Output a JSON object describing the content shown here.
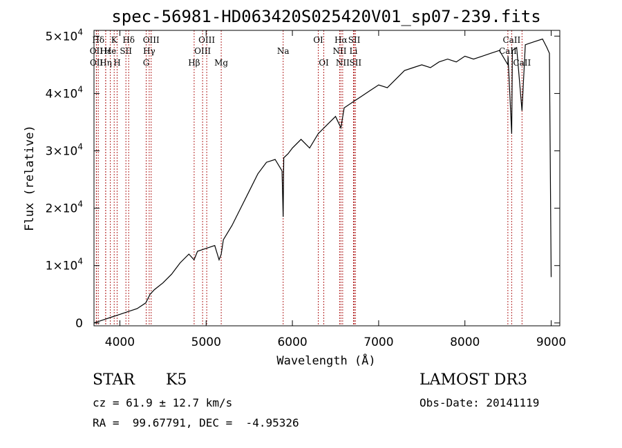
{
  "chart_data": {
    "type": "line",
    "title": "spec-56981-HD063420S025420V01_sp07-239.fits",
    "xlabel": "Wavelength (Å)",
    "ylabel": "Flux (relative)",
    "xlim": [
      3700,
      9100
    ],
    "ylim": [
      -500,
      51000
    ],
    "xticks": [
      4000,
      5000,
      6000,
      7000,
      8000,
      9000
    ],
    "xtick_labels": [
      "4000",
      "5000",
      "6000",
      "7000",
      "8000",
      "9000"
    ],
    "yticks": [
      0,
      10000,
      20000,
      30000,
      40000,
      50000
    ],
    "ytick_labels": [
      {
        "mantissa": "0",
        "exp": ""
      },
      {
        "mantissa": "1×10",
        "exp": "4"
      },
      {
        "mantissa": "2×10",
        "exp": "4"
      },
      {
        "mantissa": "3×10",
        "exp": "4"
      },
      {
        "mantissa": "4×10",
        "exp": "4"
      },
      {
        "mantissa": "5×10",
        "exp": "4"
      }
    ],
    "series": [
      {
        "name": "flux",
        "x": [
          3700,
          3800,
          3900,
          4000,
          4100,
          4200,
          4300,
          4350,
          4400,
          4500,
          4600,
          4700,
          4800,
          4860,
          4900,
          5000,
          5100,
          5150,
          5175,
          5200,
          5300,
          5400,
          5500,
          5600,
          5700,
          5800,
          5880,
          5893,
          5900,
          5950,
          6000,
          6100,
          6200,
          6300,
          6400,
          6500,
          6563,
          6600,
          6700,
          6800,
          6900,
          7000,
          7100,
          7200,
          7300,
          7400,
          7500,
          7600,
          7700,
          7800,
          7900,
          8000,
          8100,
          8200,
          8300,
          8400,
          8498,
          8500,
          8542,
          8550,
          8600,
          8662,
          8700,
          8800,
          8900,
          8950,
          8980,
          9000
        ],
        "y": [
          0,
          500,
          1000,
          1500,
          2000,
          2500,
          3500,
          5000,
          5800,
          7000,
          8500,
          10500,
          12000,
          11000,
          12500,
          13000,
          13500,
          11000,
          12000,
          14500,
          17000,
          20000,
          23000,
          26000,
          28000,
          28500,
          26500,
          18500,
          28800,
          29500,
          30500,
          32000,
          30500,
          33000,
          34500,
          36000,
          34000,
          37500,
          38500,
          39500,
          40500,
          41500,
          41000,
          42500,
          44000,
          44500,
          45000,
          44500,
          45500,
          46000,
          45500,
          46500,
          46000,
          46500,
          47000,
          47500,
          45000,
          46500,
          33000,
          47500,
          48000,
          37000,
          48500,
          49000,
          49500,
          48000,
          47000,
          8000
        ]
      }
    ],
    "line_markers": [
      {
        "label": "Hδ",
        "wl": 3750,
        "row": 1
      },
      {
        "label": "OII",
        "wl": 3727,
        "row": 2
      },
      {
        "label": "OII",
        "wl": 3729,
        "row": 3
      },
      {
        "label": "Hε",
        "wl": 3835,
        "row": 2
      },
      {
        "label": "Hη",
        "wl": 3836,
        "row": 3
      },
      {
        "label": "K",
        "wl": 3934,
        "row": 1
      },
      {
        "label": "He",
        "wl": 3889,
        "row": 2
      },
      {
        "label": "H",
        "wl": 3968,
        "row": 3
      },
      {
        "label": "SII",
        "wl": 4070,
        "row": 2
      },
      {
        "label": "Hδ",
        "wl": 4102,
        "row": 1
      },
      {
        "label": "OIII",
        "wl": 4363,
        "row": 1
      },
      {
        "label": "Hγ",
        "wl": 4340,
        "row": 2
      },
      {
        "label": "G",
        "wl": 4305,
        "row": 3
      },
      {
        "label": "Hβ",
        "wl": 4861,
        "row": 3
      },
      {
        "label": "OIII",
        "wl": 5007,
        "row": 1
      },
      {
        "label": "OIII",
        "wl": 4959,
        "row": 2
      },
      {
        "label": "Mg",
        "wl": 5175,
        "row": 3
      },
      {
        "label": "Na",
        "wl": 5893,
        "row": 2
      },
      {
        "label": "OI",
        "wl": 6300,
        "row": 1
      },
      {
        "label": "OI",
        "wl": 6364,
        "row": 3
      },
      {
        "label": "Hα",
        "wl": 6563,
        "row": 1
      },
      {
        "label": "NII",
        "wl": 6548,
        "row": 2
      },
      {
        "label": "NII",
        "wl": 6583,
        "row": 3
      },
      {
        "label": "SII",
        "wl": 6717,
        "row": 1
      },
      {
        "label": "Li",
        "wl": 6708,
        "row": 2
      },
      {
        "label": "SII",
        "wl": 6731,
        "row": 3
      },
      {
        "label": "CaII",
        "wl": 8542,
        "row": 1
      },
      {
        "label": "CaII",
        "wl": 8498,
        "row": 2
      },
      {
        "label": "CaII",
        "wl": 8662,
        "row": 3
      }
    ],
    "line_color": "#000000",
    "marker_color": "#b22222"
  },
  "info": {
    "object_type": "STAR",
    "subclass": "K5",
    "survey": "LAMOST DR3",
    "cz": "cz = 61.9 ± 12.7 km/s",
    "obs_date": "Obs-Date: 20141119",
    "radec": "RA =  99.67791, DEC =  -4.95326"
  }
}
